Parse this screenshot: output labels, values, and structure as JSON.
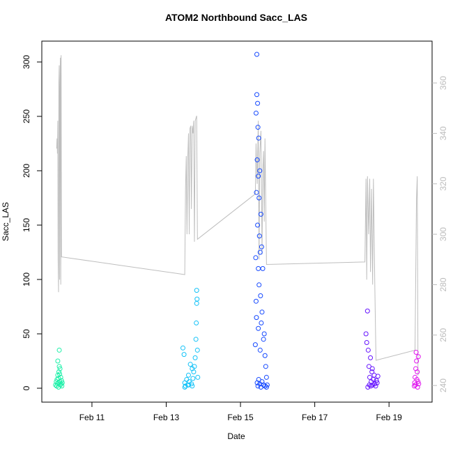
{
  "chart_data": {
    "type": "scatter",
    "title": "ATOM2 Northbound Sacc_LAS",
    "x_label": "Date",
    "y_label": "Sacc_LAS",
    "xlim": [
      9.65,
      20.16
    ],
    "xticks": [
      {
        "value": 11,
        "label": "Feb 11"
      },
      {
        "value": 13,
        "label": "Feb 13"
      },
      {
        "value": 15,
        "label": "Feb 15"
      },
      {
        "value": 17,
        "label": "Feb 17"
      },
      {
        "value": 19,
        "label": "Feb 19"
      }
    ],
    "ylim": [
      -12.8,
      319.2
    ],
    "yticks": [
      0,
      50,
      100,
      150,
      200,
      250,
      300
    ],
    "y2lim": [
      233.4,
      376.6
    ],
    "y2ticks": [
      240,
      260,
      280,
      300,
      320,
      340,
      360
    ],
    "series": [
      {
        "color": "#bebebe",
        "type": "line",
        "axis": "y2",
        "x": [
          10.05,
          10.06,
          10.07,
          10.08,
          10.09,
          10.1,
          10.11,
          10.12,
          10.13,
          10.14,
          10.15,
          10.16,
          10.17,
          10.18,
          13.5,
          13.52,
          13.54,
          13.56,
          13.58,
          13.6,
          13.62,
          13.64,
          13.66,
          13.68,
          13.7,
          13.72,
          13.74,
          13.76,
          13.78,
          13.82,
          13.84,
          15.4,
          15.42,
          15.45,
          15.48,
          15.5,
          15.52,
          15.55,
          15.58,
          15.6,
          15.62,
          15.64,
          15.66,
          15.7,
          18.35,
          18.38,
          18.4,
          18.42,
          18.45,
          18.48,
          18.5,
          18.53,
          18.56,
          18.58,
          18.62,
          18.65,
          19.7,
          19.74,
          19.76,
          19.78
        ],
        "values": [
          334,
          338,
          332,
          345,
          290,
          277,
          360,
          367,
          282,
          358,
          370,
          280,
          371,
          291,
          284,
          318,
          331,
          300,
          330,
          340,
          300,
          342,
          343,
          310,
          343,
          340,
          345,
          297,
          345,
          347,
          298,
          316,
          336,
          320,
          345,
          290,
          332,
          341,
          292,
          325,
          333,
          305,
          338,
          288,
          289,
          322,
          282,
          323,
          300,
          322,
          285,
          318,
          280,
          322,
          278,
          250,
          254,
          314,
          323,
          244
        ]
      },
      {
        "color": "#1cf0a8",
        "x": [
          10.02,
          10.04,
          10.05,
          10.06,
          10.07,
          10.08,
          10.09,
          10.1,
          10.1,
          10.11,
          10.12,
          10.12,
          10.13,
          10.14,
          10.15,
          10.16,
          10.17,
          10.18,
          10.19,
          10.2,
          10.08,
          10.13
        ],
        "values": [
          3,
          6,
          2,
          8,
          4,
          12,
          5,
          9,
          1,
          15,
          35,
          20,
          6,
          18,
          3,
          10,
          4,
          7,
          2,
          5,
          25,
          13
        ]
      },
      {
        "color": "#12c2f8",
        "x": [
          13.45,
          13.48,
          13.5,
          13.52,
          13.55,
          13.58,
          13.6,
          13.62,
          13.65,
          13.68,
          13.7,
          13.72,
          13.74,
          13.76,
          13.78,
          13.8,
          13.81,
          13.82,
          13.82,
          13.83,
          13.84,
          13.85,
          13.5,
          13.6,
          13.7
        ],
        "values": [
          37,
          31,
          5,
          2,
          8,
          3,
          12,
          6,
          22,
          4,
          18,
          9,
          15,
          20,
          28,
          45,
          60,
          78,
          90,
          82,
          35,
          10,
          1,
          3,
          2
        ]
      },
      {
        "color": "#1448ff",
        "x": [
          15.4,
          15.41,
          15.42,
          15.42,
          15.43,
          15.44,
          15.44,
          15.45,
          15.46,
          15.46,
          15.47,
          15.48,
          15.48,
          15.49,
          15.5,
          15.5,
          15.51,
          15.52,
          15.53,
          15.54,
          15.55,
          15.56,
          15.57,
          15.58,
          15.6,
          15.62,
          15.64,
          15.66,
          15.68,
          15.7,
          15.72,
          15.45,
          15.47,
          15.49,
          15.52,
          15.55,
          15.58,
          15.62,
          15.66,
          15.7,
          15.43,
          15.48,
          15.53
        ],
        "values": [
          40,
          120,
          253,
          80,
          180,
          307,
          270,
          210,
          150,
          262,
          240,
          110,
          195,
          230,
          95,
          175,
          140,
          200,
          125,
          85,
          160,
          60,
          130,
          70,
          110,
          45,
          50,
          30,
          20,
          10,
          3,
          5,
          2,
          8,
          4,
          1,
          6,
          3,
          2,
          1,
          65,
          55,
          35
        ]
      },
      {
        "color": "#6411ff",
        "x": [
          18.38,
          18.4,
          18.42,
          18.44,
          18.46,
          18.48,
          18.5,
          18.52,
          18.54,
          18.56,
          18.58,
          18.6,
          18.62,
          18.64,
          18.66,
          18.68,
          18.7,
          18.43,
          18.47,
          18.51,
          18.55
        ],
        "values": [
          50,
          42,
          71,
          35,
          20,
          10,
          28,
          6,
          15,
          3,
          8,
          12,
          4,
          2,
          7,
          5,
          11,
          1,
          3,
          2,
          18
        ]
      },
      {
        "color": "#e015ee",
        "x": [
          19.68,
          19.69,
          19.7,
          19.71,
          19.72,
          19.73,
          19.74,
          19.75,
          19.76,
          19.77,
          19.78,
          19.79,
          19.8
        ],
        "values": [
          2,
          5,
          10,
          3,
          18,
          33,
          25,
          8,
          15,
          1,
          6,
          29,
          4
        ]
      }
    ]
  }
}
